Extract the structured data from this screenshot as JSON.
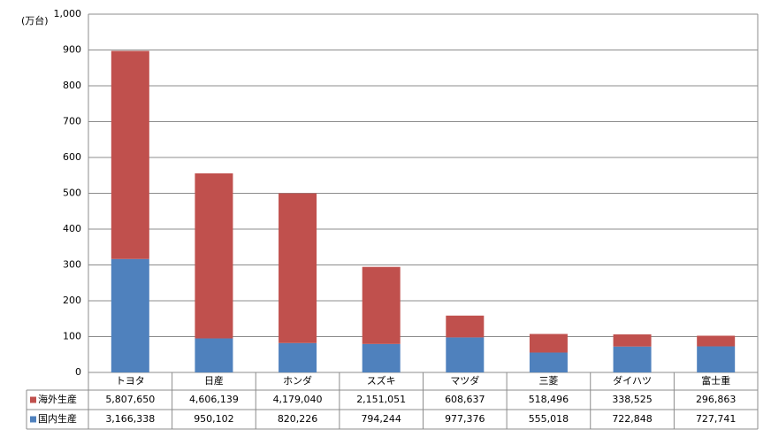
{
  "chart_data": {
    "type": "stacked-bar",
    "y_label": "(万台)",
    "categories": [
      "トヨタ",
      "日産",
      "ホンダ",
      "スズキ",
      "マツダ",
      "三菱",
      "ダイハツ",
      "富士重"
    ],
    "series": [
      {
        "name": "海外生産",
        "color": "#c0504d",
        "values": [
          580.765,
          460.6139,
          417.904,
          215.1051,
          60.8637,
          51.8496,
          33.8525,
          29.6863
        ],
        "value_labels": [
          "5,807,650",
          "4,606,139",
          "4,179,040",
          "2,151,051",
          "608,637",
          "518,496",
          "338,525",
          "296,863"
        ]
      },
      {
        "name": "国内生産",
        "color": "#4f81bd",
        "values": [
          316.6338,
          95.0102,
          82.0226,
          79.4244,
          97.7376,
          55.5018,
          72.2848,
          72.7741
        ],
        "value_labels": [
          "3,166,338",
          "950,102",
          "820,226",
          "794,244",
          "977,376",
          "555,018",
          "722,848",
          "727,741"
        ]
      }
    ],
    "ylim": [
      0,
      1000
    ],
    "yticks": [
      0,
      100,
      200,
      300,
      400,
      500,
      600,
      700,
      800,
      900,
      {
        "value": 1000,
        "label": "1,000"
      }
    ],
    "grid": true
  }
}
